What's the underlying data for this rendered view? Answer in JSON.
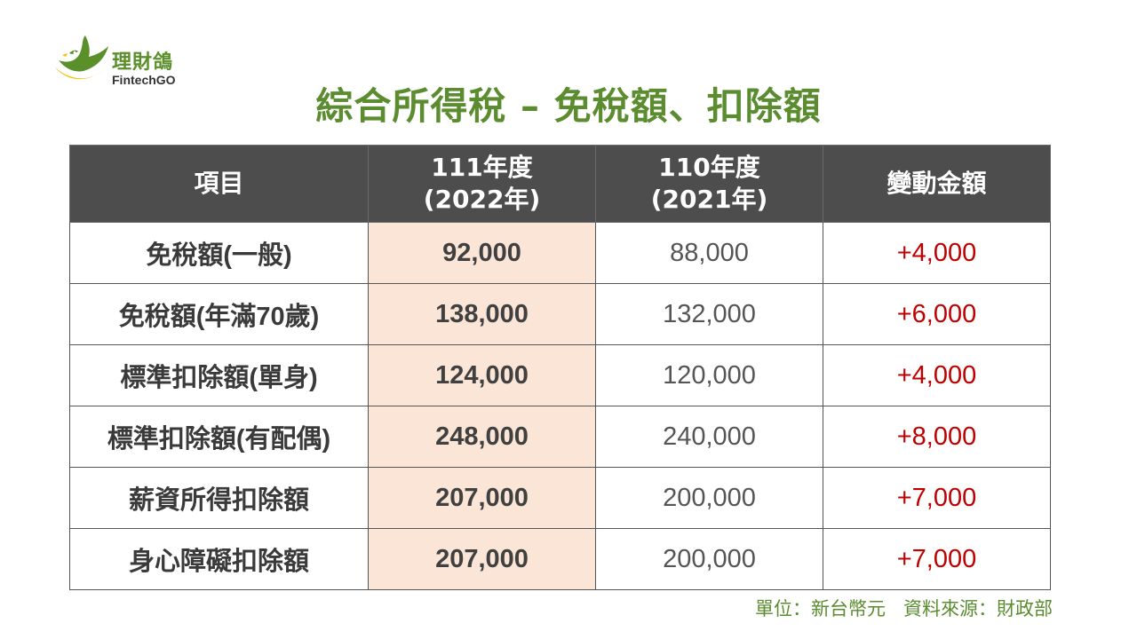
{
  "logo": {
    "name_cn": "理財鴿",
    "name_en": "FintechGO",
    "colors": {
      "green": "#5a8f2a",
      "yellow": "#f2c200"
    }
  },
  "title": "綜合所得稅 – 免稅額、扣除額",
  "table": {
    "headers": [
      {
        "line1": "項目",
        "line2": ""
      },
      {
        "line1": "111年度",
        "line2": "(2022年)"
      },
      {
        "line1": "110年度",
        "line2": "(2021年)"
      },
      {
        "line1": "變動金額",
        "line2": ""
      }
    ],
    "rows": [
      {
        "item": "免稅額(一般)",
        "y2022": "92,000",
        "y2021": "88,000",
        "change": "+4,000"
      },
      {
        "item": "免稅額(年滿70歲)",
        "y2022": "138,000",
        "y2021": "132,000",
        "change": "+6,000"
      },
      {
        "item": "標準扣除額(單身)",
        "y2022": "124,000",
        "y2021": "120,000",
        "change": "+4,000"
      },
      {
        "item": "標準扣除額(有配偶)",
        "y2022": "248,000",
        "y2021": "240,000",
        "change": "+8,000"
      },
      {
        "item": "薪資所得扣除額",
        "y2022": "207,000",
        "y2021": "200,000",
        "change": "+7,000"
      },
      {
        "item": "身心障礙扣除額",
        "y2022": "207,000",
        "y2021": "200,000",
        "change": "+7,000"
      }
    ],
    "colors": {
      "header_bg": "#4d4d4d",
      "highlight_bg": "#fbe5d6",
      "change": "#c00000"
    }
  },
  "footnote": "單位：新台幣元   資料來源：財政部"
}
